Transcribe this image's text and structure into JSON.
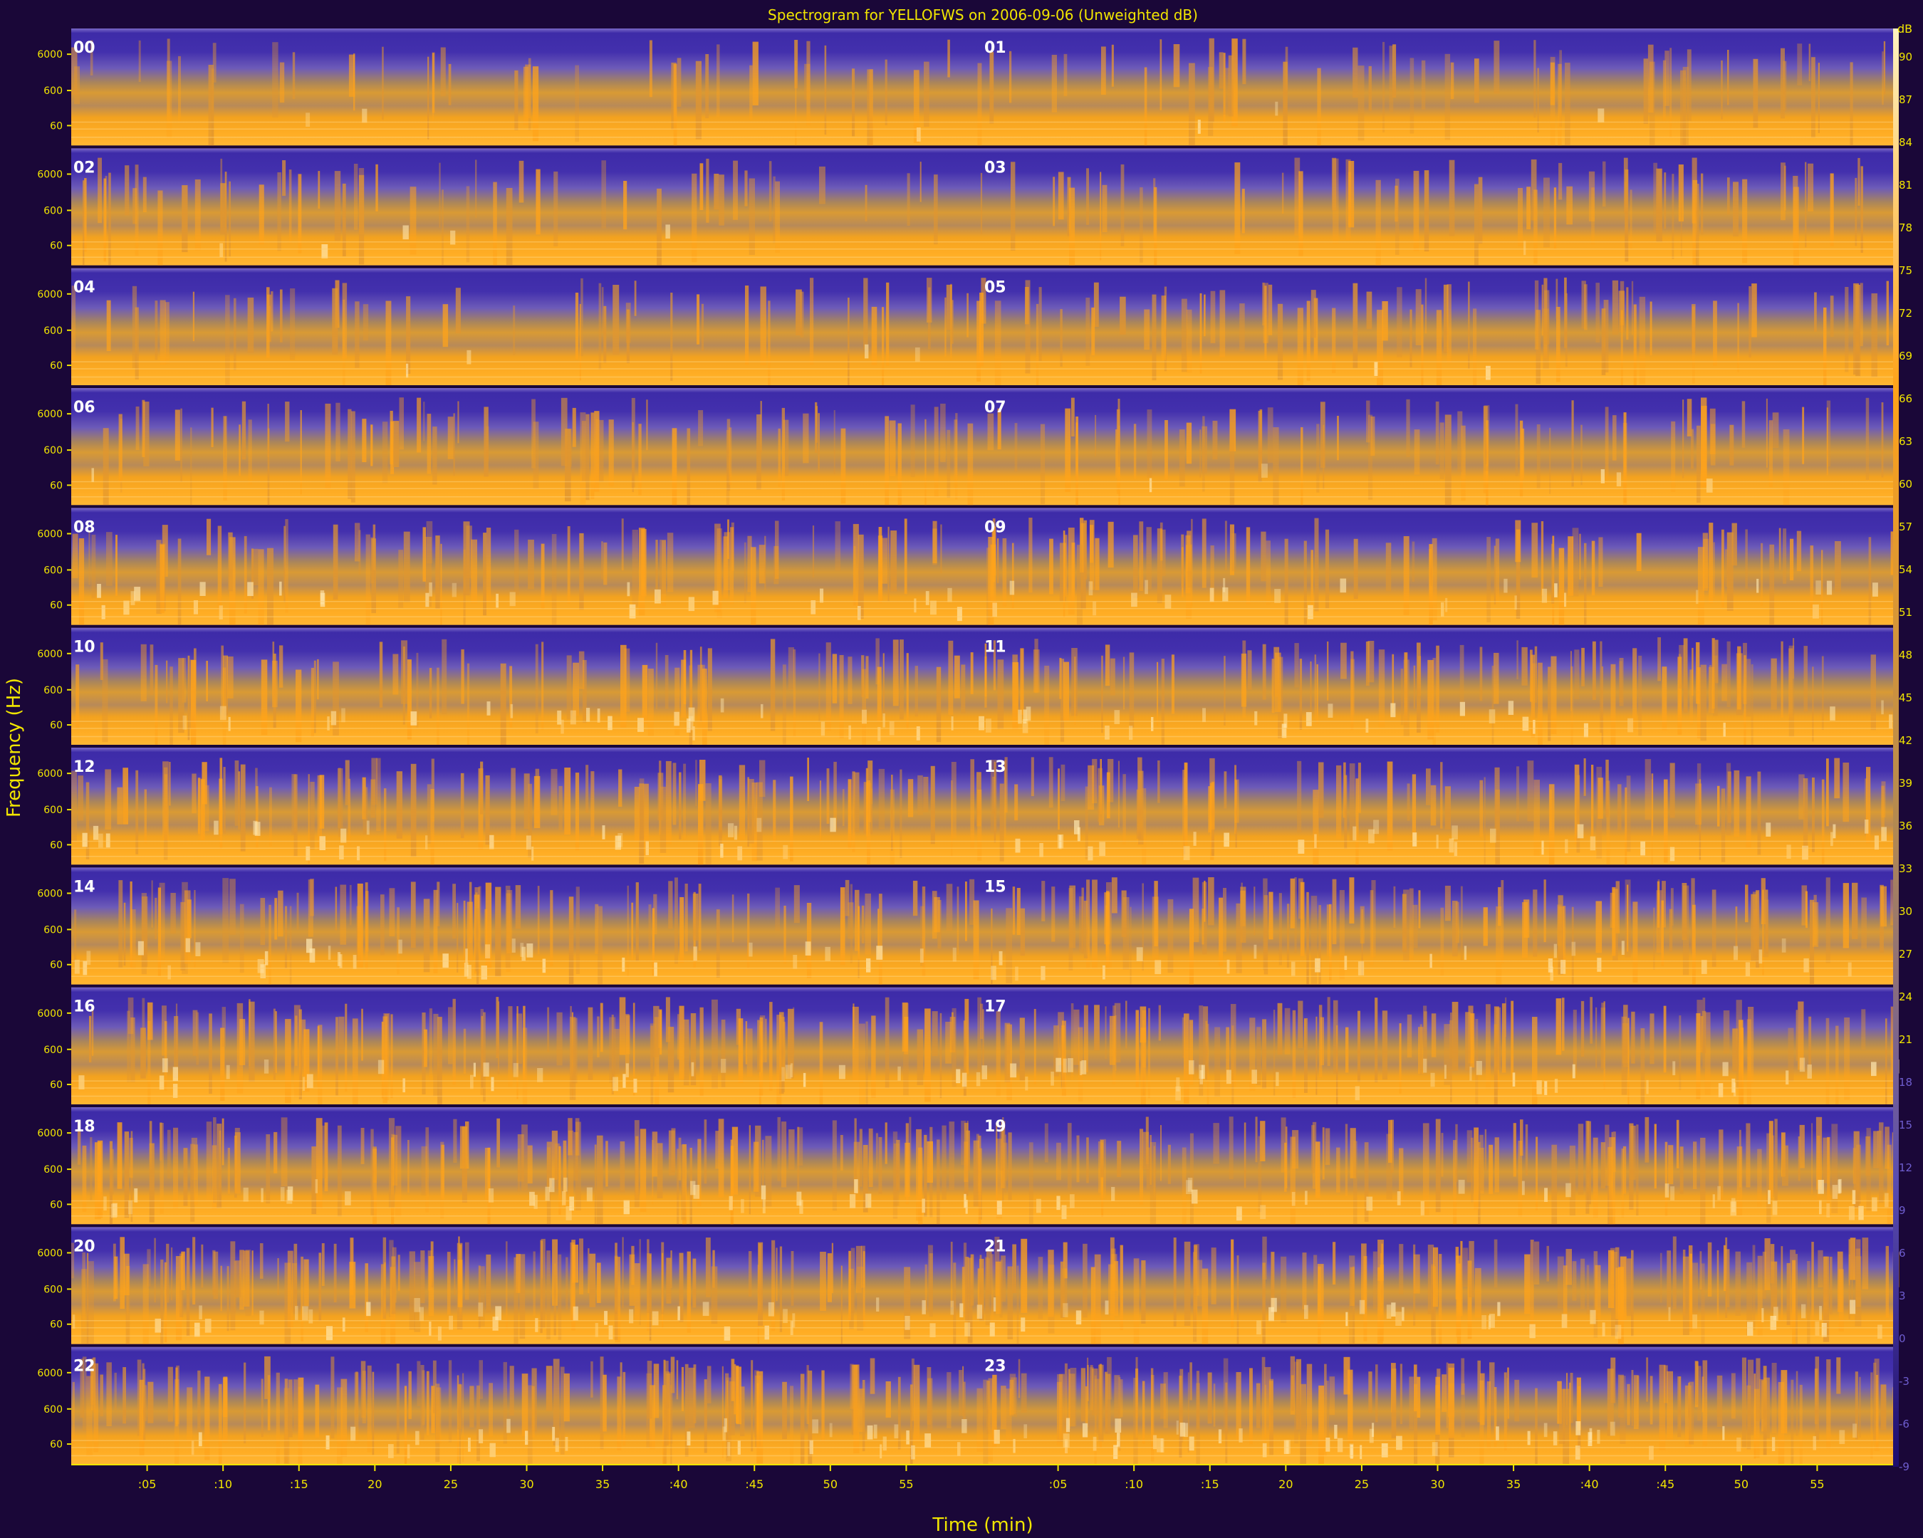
{
  "chart_data": {
    "type": "heatmap",
    "title": "Spectrogram for YELLOFWS on 2006-09-06 (Unweighted dB)",
    "xlabel": "Time (min)",
    "ylabel": "Frequency (Hz)",
    "colorbar": {
      "unit": "dB",
      "ticks": [
        90,
        87,
        84,
        81,
        78,
        75,
        72,
        69,
        66,
        63,
        60,
        57,
        54,
        51,
        48,
        45,
        42,
        39,
        36,
        33,
        30,
        27,
        24,
        21,
        18,
        15,
        12,
        9,
        6,
        3,
        0,
        -3,
        -6,
        -9
      ],
      "range": [
        -9,
        92
      ],
      "colors": [
        "#1d0c6e",
        "#5a4db0",
        "#b48a50",
        "#ffa31a",
        "#fff2c0"
      ]
    },
    "frequency_ticks": [
      "6000",
      "600",
      "60"
    ],
    "time_ticks": [
      ":05",
      ":10",
      ":15",
      "20",
      "25",
      "30",
      "35",
      ":40",
      ":45",
      "50",
      "55"
    ],
    "panel_hours": [
      "00",
      "01",
      "02",
      "03",
      "04",
      "05",
      "06",
      "07",
      "08",
      "09",
      "10",
      "11",
      "12",
      "13",
      "14",
      "15",
      "16",
      "17",
      "18",
      "19",
      "20",
      "21",
      "22",
      "23"
    ],
    "colors": {
      "background": "#1a0738",
      "text": "#f2e600",
      "hour_label": "#ffffff",
      "low_level": "#4a38b0",
      "high_level": "#ffa31a"
    }
  }
}
